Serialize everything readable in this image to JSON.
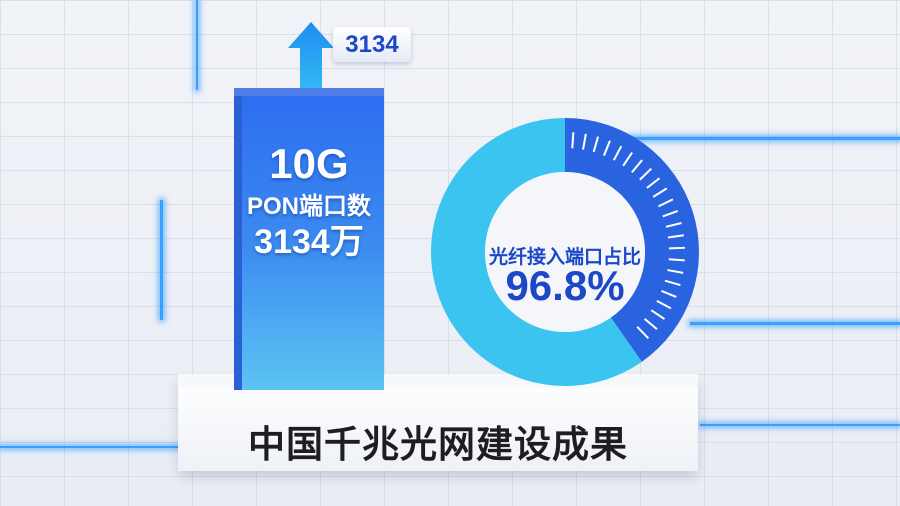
{
  "bar": {
    "value_tag": "3134",
    "line1": "10G",
    "line2": "PON端口数",
    "line3": "3134万"
  },
  "donut": {
    "label": "光纤接入端口占比",
    "value": "96.8%",
    "colors": {
      "ring_light": "#3cc4f0",
      "ring_dark": "#2a63e0"
    }
  },
  "pedestal": {
    "title": "中国千兆光网建设成果"
  }
}
